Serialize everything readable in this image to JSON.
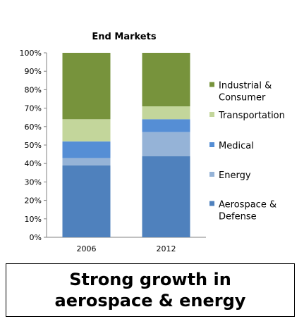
{
  "chart_data": {
    "type": "bar",
    "stacked": true,
    "title": "End Markets",
    "xlabel": "",
    "ylabel": "",
    "ylim": [
      0,
      100
    ],
    "yticks": [
      "0%",
      "10%",
      "20%",
      "30%",
      "40%",
      "50%",
      "60%",
      "70%",
      "80%",
      "90%",
      "100%"
    ],
    "categories": [
      "2006",
      "2012"
    ],
    "series": [
      {
        "name": "Aerospace & Defense",
        "color": "#4f81bd",
        "values": [
          39,
          44
        ]
      },
      {
        "name": "Energy",
        "color": "#95b3d7",
        "values": [
          4,
          13
        ]
      },
      {
        "name": "Medical",
        "color": "#558ed5",
        "values": [
          9,
          7
        ]
      },
      {
        "name": "Transportation",
        "color": "#c3d69b",
        "values": [
          12,
          7
        ]
      },
      {
        "name": "Industrial & Consumer",
        "color": "#77933c",
        "values": [
          36,
          29
        ]
      }
    ],
    "legend_position": "right",
    "legend_order": [
      "Industrial & Consumer",
      "Transportation",
      "Medical",
      "Energy",
      "Aerospace & Defense"
    ],
    "grid": false
  },
  "caption": "Strong growth in\naerospace & energy"
}
